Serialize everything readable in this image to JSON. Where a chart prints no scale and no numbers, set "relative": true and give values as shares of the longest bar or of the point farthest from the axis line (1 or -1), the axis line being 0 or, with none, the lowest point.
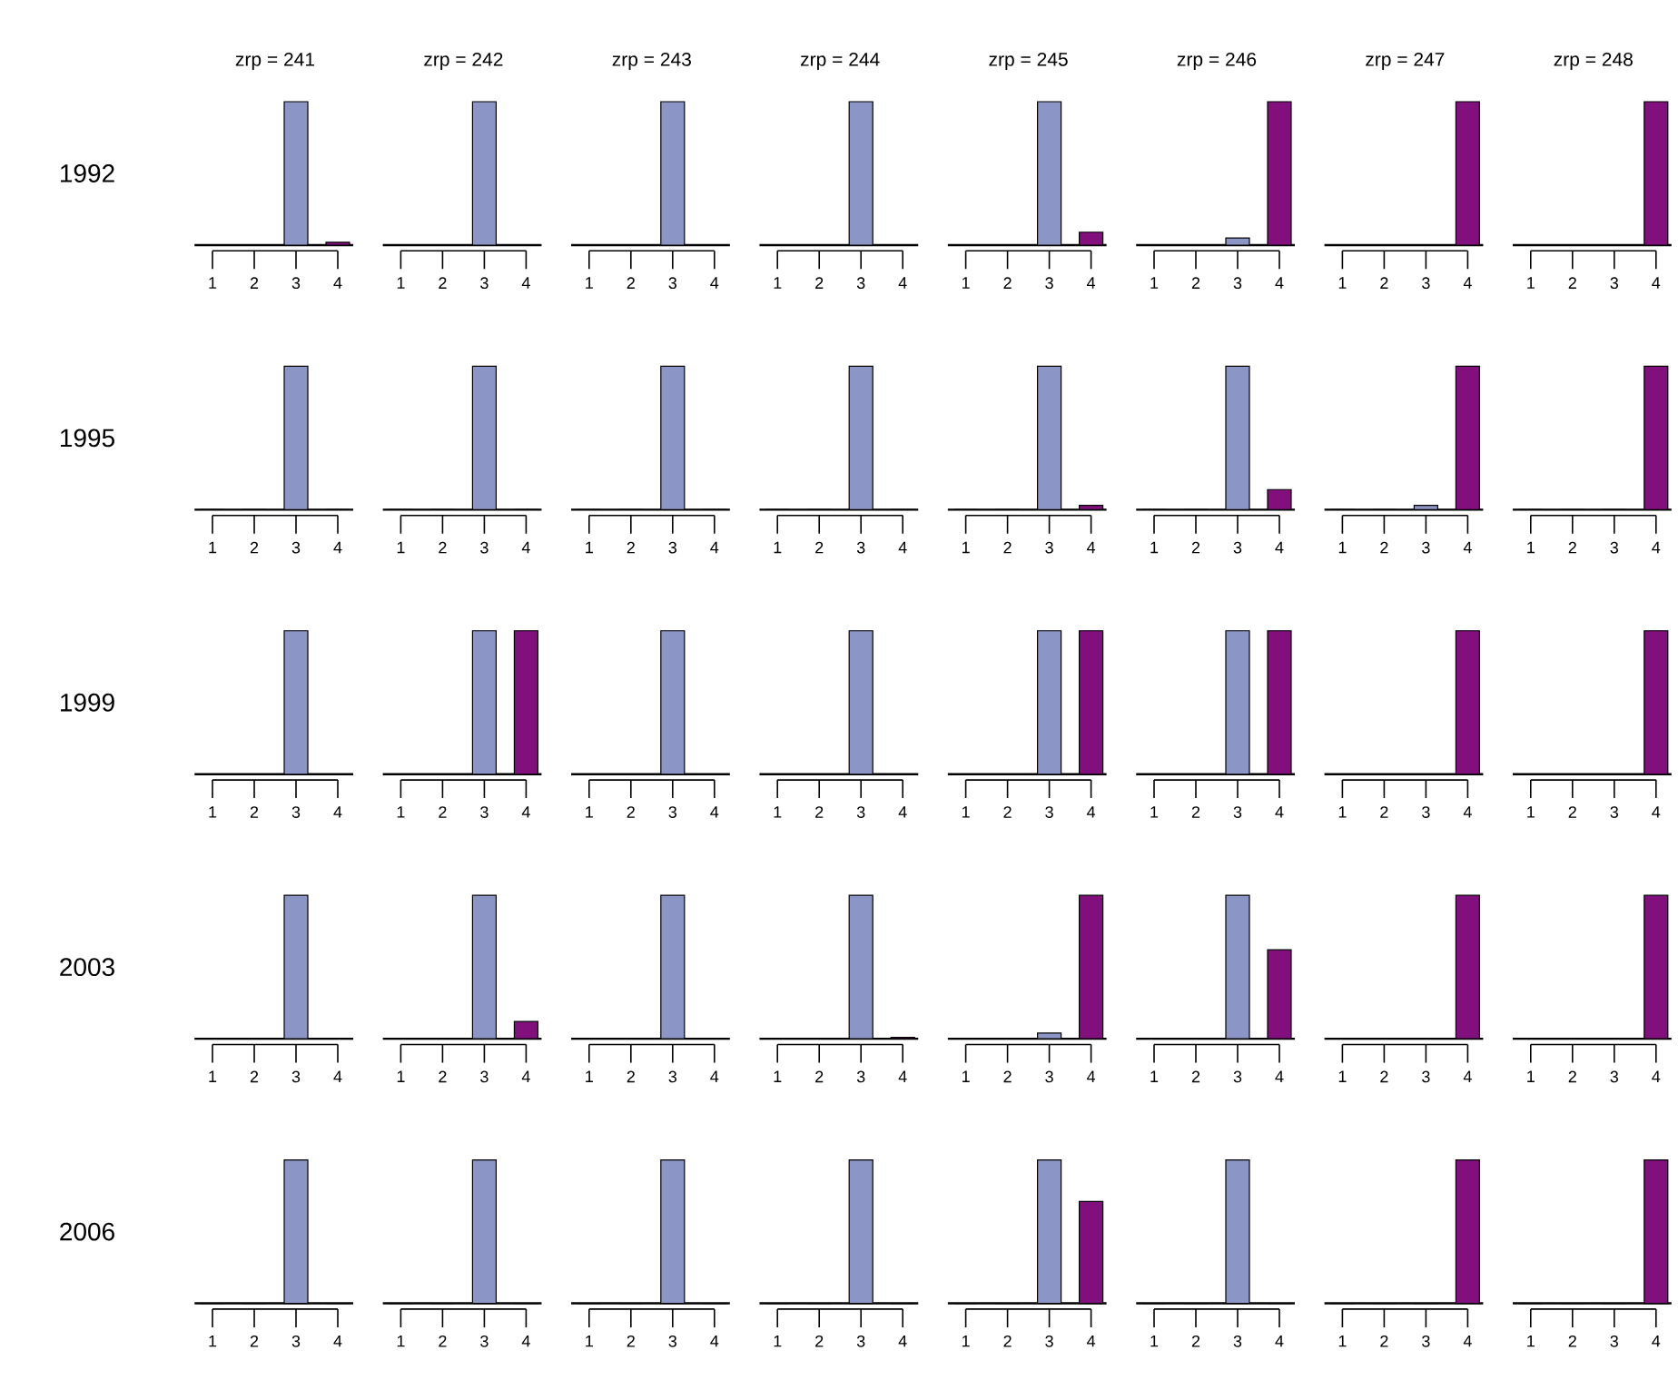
{
  "chart_data": [
    {
      "type": "bar",
      "title": "zrp = 241",
      "ylabel": "1992",
      "categories": [
        "1",
        "2",
        "3",
        "4"
      ],
      "values": [
        0,
        0,
        1,
        0.02
      ],
      "colors": [
        "#8c96c6",
        "#8c96c6",
        "#8c96c6",
        "#810f7c"
      ],
      "relative": true
    },
    {
      "type": "bar",
      "title": "zrp = 242",
      "categories": [
        "1",
        "2",
        "3",
        "4"
      ],
      "values": [
        0,
        0,
        1,
        0
      ],
      "colors": [
        "#8c96c6",
        "#8c96c6",
        "#8c96c6",
        "#810f7c"
      ],
      "relative": true
    },
    {
      "type": "bar",
      "title": "zrp = 243",
      "categories": [
        "1",
        "2",
        "3",
        "4"
      ],
      "values": [
        0,
        0,
        1,
        0
      ],
      "colors": [
        "#8c96c6",
        "#8c96c6",
        "#8c96c6",
        "#810f7c"
      ],
      "relative": true
    },
    {
      "type": "bar",
      "title": "zrp = 244",
      "categories": [
        "1",
        "2",
        "3",
        "4"
      ],
      "values": [
        0,
        0,
        1,
        0
      ],
      "colors": [
        "#8c96c6",
        "#8c96c6",
        "#8c96c6",
        "#810f7c"
      ],
      "relative": true
    },
    {
      "type": "bar",
      "title": "zrp = 245",
      "categories": [
        "1",
        "2",
        "3",
        "4"
      ],
      "values": [
        0,
        0,
        1,
        0.09
      ],
      "colors": [
        "#8c96c6",
        "#8c96c6",
        "#8c96c6",
        "#810f7c"
      ],
      "relative": true
    },
    {
      "type": "bar",
      "title": "zrp = 246",
      "categories": [
        "1",
        "2",
        "3",
        "4"
      ],
      "values": [
        0,
        0,
        0.05,
        1
      ],
      "colors": [
        "#8c96c6",
        "#8c96c6",
        "#8c96c6",
        "#810f7c"
      ],
      "relative": true
    },
    {
      "type": "bar",
      "title": "zrp = 247",
      "categories": [
        "1",
        "2",
        "3",
        "4"
      ],
      "values": [
        0,
        0,
        0,
        1
      ],
      "colors": [
        "#8c96c6",
        "#8c96c6",
        "#8c96c6",
        "#810f7c"
      ],
      "relative": true
    },
    {
      "type": "bar",
      "title": "zrp = 248",
      "categories": [
        "1",
        "2",
        "3",
        "4"
      ],
      "values": [
        0,
        0,
        0,
        1
      ],
      "colors": [
        "#8c96c6",
        "#8c96c6",
        "#8c96c6",
        "#810f7c"
      ],
      "relative": true
    },
    {
      "type": "bar",
      "ylabel": "1995",
      "categories": [
        "1",
        "2",
        "3",
        "4"
      ],
      "values": [
        0,
        0,
        1,
        0
      ],
      "colors": [
        "#8c96c6",
        "#8c96c6",
        "#8c96c6",
        "#810f7c"
      ],
      "relative": true
    },
    {
      "type": "bar",
      "categories": [
        "1",
        "2",
        "3",
        "4"
      ],
      "values": [
        0,
        0,
        1,
        0
      ],
      "colors": [
        "#8c96c6",
        "#8c96c6",
        "#8c96c6",
        "#810f7c"
      ],
      "relative": true
    },
    {
      "type": "bar",
      "categories": [
        "1",
        "2",
        "3",
        "4"
      ],
      "values": [
        0,
        0,
        1,
        0
      ],
      "colors": [
        "#8c96c6",
        "#8c96c6",
        "#8c96c6",
        "#810f7c"
      ],
      "relative": true
    },
    {
      "type": "bar",
      "categories": [
        "1",
        "2",
        "3",
        "4"
      ],
      "values": [
        0,
        0,
        1,
        0
      ],
      "colors": [
        "#8c96c6",
        "#8c96c6",
        "#8c96c6",
        "#810f7c"
      ],
      "relative": true
    },
    {
      "type": "bar",
      "categories": [
        "1",
        "2",
        "3",
        "4"
      ],
      "values": [
        0,
        0,
        1,
        0.03
      ],
      "colors": [
        "#8c96c6",
        "#8c96c6",
        "#8c96c6",
        "#810f7c"
      ],
      "relative": true
    },
    {
      "type": "bar",
      "categories": [
        "1",
        "2",
        "3",
        "4"
      ],
      "values": [
        0,
        0,
        1,
        0.14
      ],
      "colors": [
        "#8c96c6",
        "#8c96c6",
        "#8c96c6",
        "#810f7c"
      ],
      "relative": true
    },
    {
      "type": "bar",
      "categories": [
        "1",
        "2",
        "3",
        "4"
      ],
      "values": [
        0,
        0,
        0.03,
        1
      ],
      "colors": [
        "#8c96c6",
        "#8c96c6",
        "#8c96c6",
        "#810f7c"
      ],
      "relative": true
    },
    {
      "type": "bar",
      "categories": [
        "1",
        "2",
        "3",
        "4"
      ],
      "values": [
        0,
        0,
        0,
        1
      ],
      "colors": [
        "#8c96c6",
        "#8c96c6",
        "#8c96c6",
        "#810f7c"
      ],
      "relative": true
    },
    {
      "type": "bar",
      "ylabel": "1999",
      "categories": [
        "1",
        "2",
        "3",
        "4"
      ],
      "values": [
        0,
        0,
        1,
        0
      ],
      "colors": [
        "#8c96c6",
        "#8c96c6",
        "#8c96c6",
        "#810f7c"
      ],
      "relative": true
    },
    {
      "type": "bar",
      "categories": [
        "1",
        "2",
        "3",
        "4"
      ],
      "values": [
        0,
        0,
        1,
        1
      ],
      "colors": [
        "#8c96c6",
        "#8c96c6",
        "#8c96c6",
        "#810f7c"
      ],
      "relative": true
    },
    {
      "type": "bar",
      "categories": [
        "1",
        "2",
        "3",
        "4"
      ],
      "values": [
        0,
        0,
        1,
        0
      ],
      "colors": [
        "#8c96c6",
        "#8c96c6",
        "#8c96c6",
        "#810f7c"
      ],
      "relative": true
    },
    {
      "type": "bar",
      "categories": [
        "1",
        "2",
        "3",
        "4"
      ],
      "values": [
        0,
        0,
        1,
        0
      ],
      "colors": [
        "#8c96c6",
        "#8c96c6",
        "#8c96c6",
        "#810f7c"
      ],
      "relative": true
    },
    {
      "type": "bar",
      "categories": [
        "1",
        "2",
        "3",
        "4"
      ],
      "values": [
        0,
        0,
        1,
        1
      ],
      "colors": [
        "#8c96c6",
        "#8c96c6",
        "#8c96c6",
        "#810f7c"
      ],
      "relative": true
    },
    {
      "type": "bar",
      "categories": [
        "1",
        "2",
        "3",
        "4"
      ],
      "values": [
        0,
        0,
        1,
        1
      ],
      "colors": [
        "#8c96c6",
        "#8c96c6",
        "#8c96c6",
        "#810f7c"
      ],
      "relative": true
    },
    {
      "type": "bar",
      "categories": [
        "1",
        "2",
        "3",
        "4"
      ],
      "values": [
        0,
        0,
        0,
        1
      ],
      "colors": [
        "#8c96c6",
        "#8c96c6",
        "#8c96c6",
        "#810f7c"
      ],
      "relative": true
    },
    {
      "type": "bar",
      "categories": [
        "1",
        "2",
        "3",
        "4"
      ],
      "values": [
        0,
        0,
        0,
        1
      ],
      "colors": [
        "#8c96c6",
        "#8c96c6",
        "#8c96c6",
        "#810f7c"
      ],
      "relative": true
    },
    {
      "type": "bar",
      "ylabel": "2003",
      "categories": [
        "1",
        "2",
        "3",
        "4"
      ],
      "values": [
        0,
        0,
        1,
        0
      ],
      "colors": [
        "#8c96c6",
        "#8c96c6",
        "#8c96c6",
        "#810f7c"
      ],
      "relative": true
    },
    {
      "type": "bar",
      "categories": [
        "1",
        "2",
        "3",
        "4"
      ],
      "values": [
        0,
        0,
        1,
        0.12
      ],
      "colors": [
        "#8c96c6",
        "#8c96c6",
        "#8c96c6",
        "#810f7c"
      ],
      "relative": true
    },
    {
      "type": "bar",
      "categories": [
        "1",
        "2",
        "3",
        "4"
      ],
      "values": [
        0,
        0,
        1,
        0
      ],
      "colors": [
        "#8c96c6",
        "#8c96c6",
        "#8c96c6",
        "#810f7c"
      ],
      "relative": true
    },
    {
      "type": "bar",
      "categories": [
        "1",
        "2",
        "3",
        "4"
      ],
      "values": [
        0,
        0,
        1,
        0.01
      ],
      "colors": [
        "#8c96c6",
        "#8c96c6",
        "#8c96c6",
        "#810f7c"
      ],
      "relative": true
    },
    {
      "type": "bar",
      "categories": [
        "1",
        "2",
        "3",
        "4"
      ],
      "values": [
        0,
        0,
        0.04,
        1
      ],
      "colors": [
        "#8c96c6",
        "#8c96c6",
        "#8c96c6",
        "#810f7c"
      ],
      "relative": true
    },
    {
      "type": "bar",
      "categories": [
        "1",
        "2",
        "3",
        "4"
      ],
      "values": [
        0,
        0,
        1,
        0.62
      ],
      "colors": [
        "#8c96c6",
        "#8c96c6",
        "#8c96c6",
        "#810f7c"
      ],
      "relative": true
    },
    {
      "type": "bar",
      "categories": [
        "1",
        "2",
        "3",
        "4"
      ],
      "values": [
        0,
        0,
        0,
        1
      ],
      "colors": [
        "#8c96c6",
        "#8c96c6",
        "#8c96c6",
        "#810f7c"
      ],
      "relative": true
    },
    {
      "type": "bar",
      "categories": [
        "1",
        "2",
        "3",
        "4"
      ],
      "values": [
        0,
        0,
        0,
        1
      ],
      "colors": [
        "#8c96c6",
        "#8c96c6",
        "#8c96c6",
        "#810f7c"
      ],
      "relative": true
    },
    {
      "type": "bar",
      "ylabel": "2006",
      "categories": [
        "1",
        "2",
        "3",
        "4"
      ],
      "values": [
        0,
        0,
        1,
        0
      ],
      "colors": [
        "#8c96c6",
        "#8c96c6",
        "#8c96c6",
        "#810f7c"
      ],
      "relative": true
    },
    {
      "type": "bar",
      "categories": [
        "1",
        "2",
        "3",
        "4"
      ],
      "values": [
        0,
        0,
        1,
        0
      ],
      "colors": [
        "#8c96c6",
        "#8c96c6",
        "#8c96c6",
        "#810f7c"
      ],
      "relative": true
    },
    {
      "type": "bar",
      "categories": [
        "1",
        "2",
        "3",
        "4"
      ],
      "values": [
        0,
        0,
        1,
        0
      ],
      "colors": [
        "#8c96c6",
        "#8c96c6",
        "#8c96c6",
        "#810f7c"
      ],
      "relative": true
    },
    {
      "type": "bar",
      "categories": [
        "1",
        "2",
        "3",
        "4"
      ],
      "values": [
        0,
        0,
        1,
        0
      ],
      "colors": [
        "#8c96c6",
        "#8c96c6",
        "#8c96c6",
        "#810f7c"
      ],
      "relative": true
    },
    {
      "type": "bar",
      "categories": [
        "1",
        "2",
        "3",
        "4"
      ],
      "values": [
        0,
        0,
        1,
        0.71
      ],
      "colors": [
        "#8c96c6",
        "#8c96c6",
        "#8c96c6",
        "#810f7c"
      ],
      "relative": true
    },
    {
      "type": "bar",
      "categories": [
        "1",
        "2",
        "3",
        "4"
      ],
      "values": [
        0,
        0,
        1,
        0
      ],
      "colors": [
        "#8c96c6",
        "#8c96c6",
        "#8c96c6",
        "#810f7c"
      ],
      "relative": true
    },
    {
      "type": "bar",
      "categories": [
        "1",
        "2",
        "3",
        "4"
      ],
      "values": [
        0,
        0,
        0,
        1
      ],
      "colors": [
        "#8c96c6",
        "#8c96c6",
        "#8c96c6",
        "#810f7c"
      ],
      "relative": true
    },
    {
      "type": "bar",
      "categories": [
        "1",
        "2",
        "3",
        "4"
      ],
      "values": [
        0,
        0,
        0,
        1
      ],
      "colors": [
        "#8c96c6",
        "#8c96c6",
        "#8c96c6",
        "#810f7c"
      ],
      "relative": true
    }
  ]
}
